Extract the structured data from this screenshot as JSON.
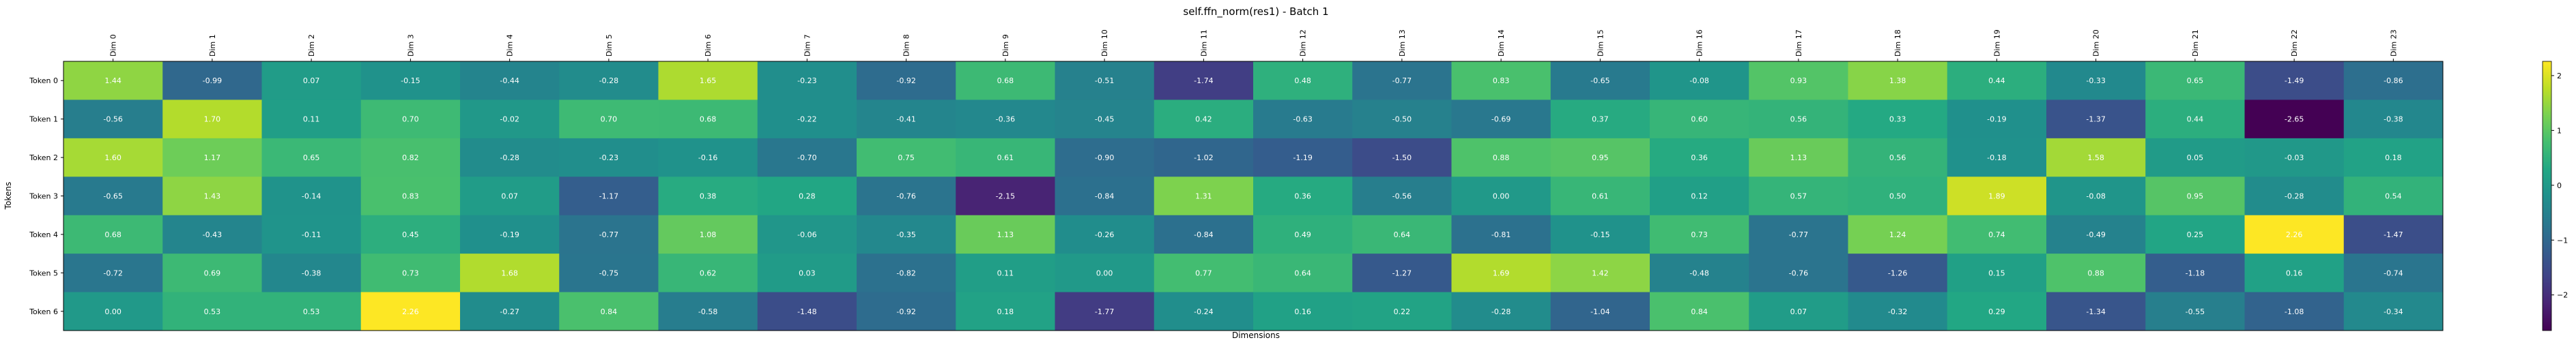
{
  "chart_data": {
    "type": "heatmap",
    "title": "self.ffn_norm(res1) - Batch 1",
    "xlabel": "Dimensions",
    "ylabel": "Tokens",
    "x_categories": [
      "Dim 0",
      "Dim 1",
      "Dim 2",
      "Dim 3",
      "Dim 4",
      "Dim 5",
      "Dim 6",
      "Dim 7",
      "Dim 8",
      "Dim 9",
      "Dim 10",
      "Dim 11",
      "Dim 12",
      "Dim 13",
      "Dim 14",
      "Dim 15",
      "Dim 16",
      "Dim 17",
      "Dim 18",
      "Dim 19",
      "Dim 20",
      "Dim 21",
      "Dim 22",
      "Dim 23"
    ],
    "y_categories": [
      "Token 0",
      "Token 1",
      "Token 2",
      "Token 3",
      "Token 4",
      "Token 5",
      "Token 6"
    ],
    "values": [
      [
        1.44,
        -0.99,
        0.07,
        -0.15,
        -0.44,
        -0.28,
        1.65,
        -0.23,
        -0.92,
        0.68,
        -0.51,
        -1.74,
        0.48,
        -0.77,
        0.83,
        -0.65,
        -0.08,
        0.93,
        1.38,
        0.44,
        -0.33,
        0.65,
        -1.49,
        -0.86
      ],
      [
        -0.56,
        1.7,
        0.11,
        0.7,
        -0.02,
        0.7,
        0.68,
        -0.22,
        -0.41,
        -0.36,
        -0.45,
        0.42,
        -0.63,
        -0.5,
        -0.69,
        0.37,
        0.6,
        0.56,
        0.33,
        -0.19,
        -1.37,
        0.44,
        -2.65,
        -0.38
      ],
      [
        1.6,
        1.17,
        0.65,
        0.82,
        -0.28,
        -0.23,
        -0.16,
        -0.7,
        0.75,
        0.61,
        -0.9,
        -1.02,
        -1.19,
        -1.5,
        0.88,
        0.95,
        0.36,
        1.13,
        0.56,
        -0.18,
        1.58,
        0.05,
        -0.03,
        0.18
      ],
      [
        -0.65,
        1.43,
        -0.14,
        0.83,
        0.07,
        -1.17,
        0.38,
        0.28,
        -0.76,
        -2.15,
        -0.84,
        1.31,
        0.36,
        -0.56,
        -0.0,
        0.61,
        0.12,
        0.57,
        0.5,
        1.89,
        -0.08,
        0.95,
        -0.28,
        0.54
      ],
      [
        0.68,
        -0.43,
        -0.11,
        0.45,
        -0.19,
        -0.77,
        1.08,
        -0.06,
        -0.35,
        1.13,
        -0.26,
        -0.84,
        0.49,
        0.64,
        -0.81,
        -0.15,
        0.73,
        -0.77,
        1.24,
        0.74,
        -0.49,
        0.25,
        2.26,
        -1.47
      ],
      [
        -0.72,
        0.69,
        -0.38,
        0.73,
        1.68,
        -0.75,
        0.62,
        0.03,
        -0.82,
        0.11,
        0.0,
        0.77,
        0.64,
        -1.27,
        1.69,
        1.42,
        -0.48,
        -0.76,
        -1.26,
        0.15,
        0.88,
        -1.18,
        0.16,
        -0.74
      ],
      [
        0.0,
        0.53,
        0.53,
        2.26,
        -0.27,
        0.84,
        -0.58,
        -1.48,
        -0.92,
        0.18,
        -1.77,
        -0.24,
        0.16,
        0.22,
        -0.28,
        -1.04,
        0.84,
        0.07,
        -0.32,
        0.29,
        -1.34,
        -0.55,
        -1.08,
        -0.34
      ]
    ],
    "colormap": "viridis",
    "vmin": -2.65,
    "vmax": 2.26,
    "colorbar_ticks": [
      -2,
      -1,
      0,
      1,
      2
    ],
    "colorbar_tick_labels": [
      "−2",
      "−1",
      "0",
      "1",
      "2"
    ],
    "cell_label_color": "#ffffff"
  }
}
